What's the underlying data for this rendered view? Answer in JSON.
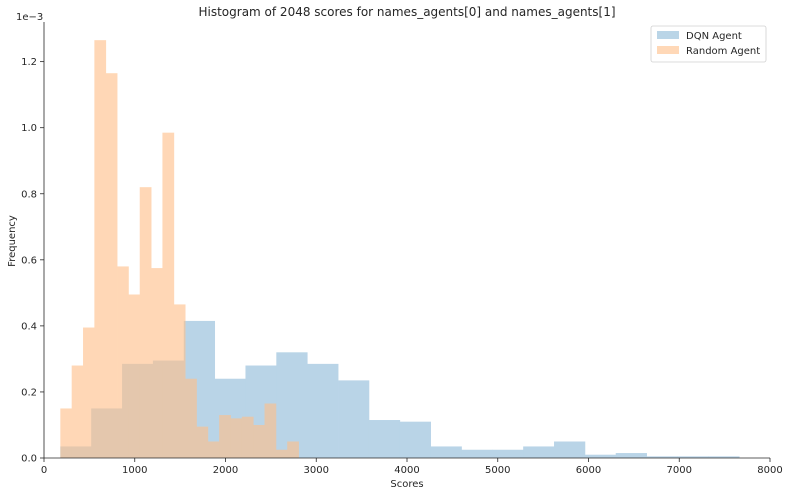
{
  "chart_data": {
    "type": "bar",
    "title": "Histogram of 2048 scores for names_agents[0] and names_agents[1]",
    "xlabel": "Scores",
    "ylabel": "Frequency",
    "y_offset_label": "1e−3",
    "xlim": [
      0,
      8000
    ],
    "ylim": [
      0,
      1.32
    ],
    "x_ticks": [
      0,
      1000,
      2000,
      3000,
      4000,
      5000,
      6000,
      7000,
      8000
    ],
    "x_tick_labels": [
      "0",
      "1000",
      "2000",
      "3000",
      "4000",
      "5000",
      "6000",
      "7000",
      "8000"
    ],
    "y_ticks": [
      0.0,
      0.2,
      0.4,
      0.6,
      0.8,
      1.0,
      1.2
    ],
    "y_tick_labels": [
      "0.0",
      "0.2",
      "0.4",
      "0.6",
      "0.8",
      "1.0",
      "1.2"
    ],
    "grid": false,
    "legend_position": "top-right",
    "series": [
      {
        "name": "DQN Agent",
        "color": "#8fbbd9",
        "bin_edges": [
          180,
          520,
          860,
          1200,
          1540,
          1880,
          2220,
          2560,
          2900,
          3240,
          3580,
          3920,
          4260,
          4600,
          4940,
          5280,
          5620,
          5960,
          6300,
          6640,
          6980,
          7320,
          7660
        ],
        "values": [
          0.035,
          0.15,
          0.285,
          0.295,
          0.415,
          0.24,
          0.28,
          0.32,
          0.285,
          0.235,
          0.115,
          0.11,
          0.035,
          0.025,
          0.025,
          0.035,
          0.05,
          0.01,
          0.015,
          0.005,
          0.005,
          0.005
        ]
      },
      {
        "name": "Random Agent",
        "color": "#ffc08a",
        "bin_edges": [
          180,
          305,
          430,
          555,
          680,
          805,
          930,
          1055,
          1180,
          1305,
          1430,
          1555,
          1680,
          1805,
          1930,
          2055,
          2180,
          2305,
          2430,
          2555,
          2680,
          2805
        ],
        "values": [
          0.15,
          0.28,
          0.395,
          1.265,
          1.165,
          0.58,
          0.495,
          0.82,
          0.575,
          0.985,
          0.465,
          0.24,
          0.095,
          0.05,
          0.13,
          0.12,
          0.125,
          0.1,
          0.165,
          0.025,
          0.05
        ]
      }
    ]
  }
}
